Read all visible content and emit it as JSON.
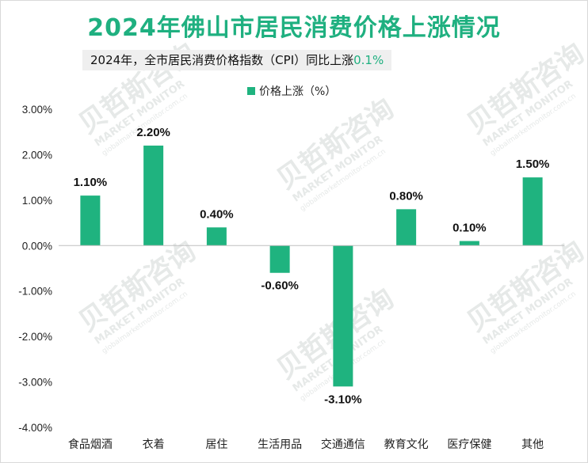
{
  "page": {
    "title": "2024年佛山市居民消费价格上涨情况",
    "subtitle_prefix": "2024年，全市居民消费价格指数（CPI）同比上涨",
    "subtitle_highlight": "0.1%"
  },
  "colors": {
    "accent": "#1fb080",
    "bar": "#1fb37f",
    "axis": "#bfbfbf"
  },
  "watermark": {
    "brand": "贝哲斯咨询",
    "en": "MARKET MONITOR",
    "url": "globalmarketmonitor.com.cn"
  },
  "chart_data": {
    "type": "bar",
    "title": "2024年佛山市居民消费价格上涨情况",
    "categories": [
      "食品烟酒",
      "衣着",
      "居住",
      "生活用品",
      "交通通信",
      "教育文化",
      "医疗保健",
      "其他"
    ],
    "series": [
      {
        "name": "价格上涨（%）",
        "values": [
          1.1,
          2.2,
          0.4,
          -0.6,
          -3.1,
          0.8,
          0.1,
          1.5
        ]
      }
    ],
    "value_labels": [
      "1.10%",
      "2.20%",
      "0.40%",
      "-0.60%",
      "-3.10%",
      "0.80%",
      "0.10%",
      "1.50%"
    ],
    "legend_label": "价格上涨（%）",
    "legend_position": "top",
    "ylim": [
      -4.0,
      3.0
    ],
    "yticks": [
      3.0,
      2.0,
      1.0,
      0.0,
      -1.0,
      -2.0,
      -3.0,
      -4.0
    ],
    "ytick_labels": [
      "3.00%",
      "2.00%",
      "1.00%",
      "0.00%",
      "-1.00%",
      "-2.00%",
      "-3.00%",
      "-4.00%"
    ],
    "xlabel": "",
    "ylabel": "",
    "grid": false
  }
}
